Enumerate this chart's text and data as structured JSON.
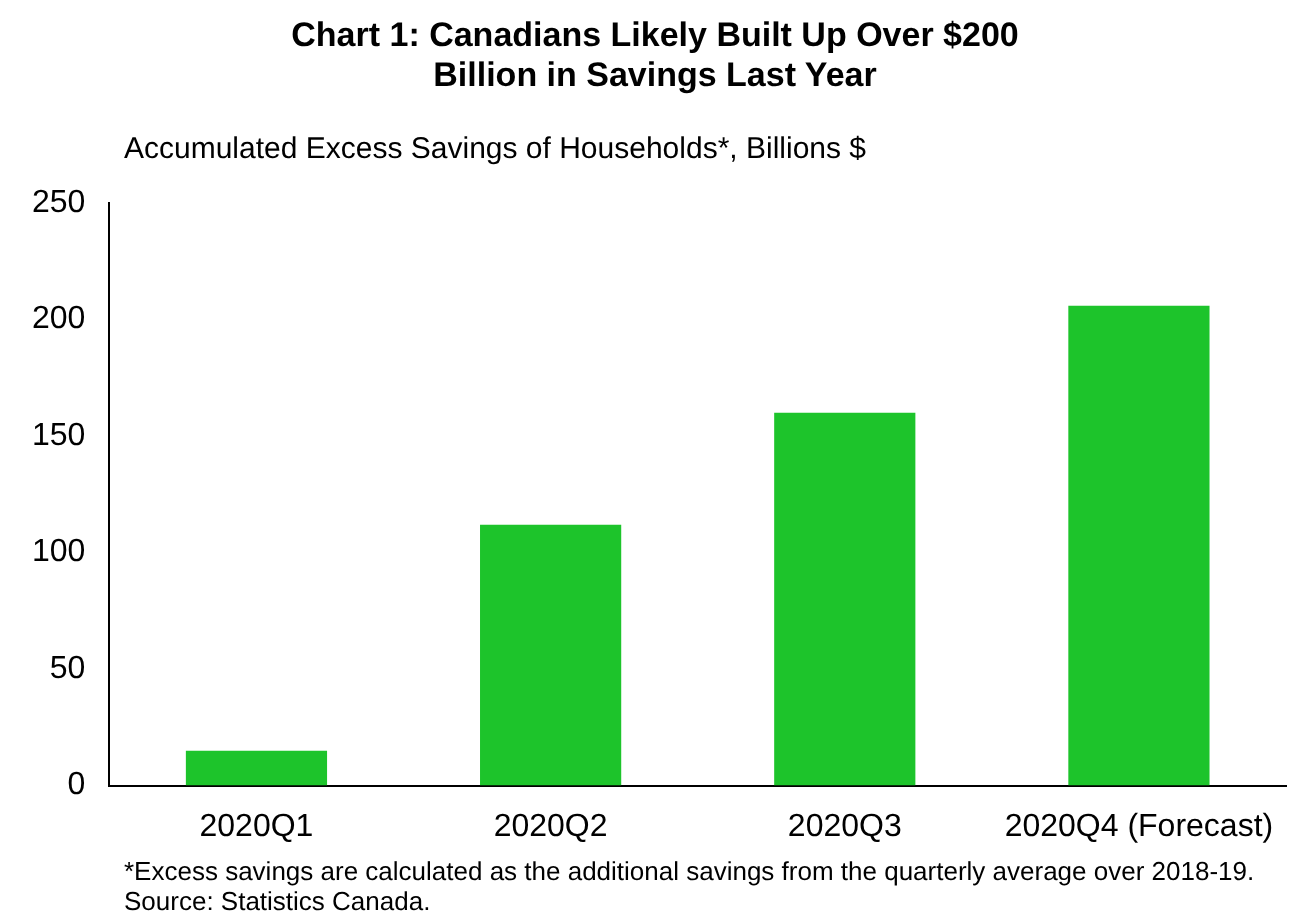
{
  "chart_data": {
    "type": "bar",
    "title": "Chart 1: Canadians Likely Built Up Over $200 Billion in Savings Last Year",
    "ylabel": "Accumulated Excess Savings of Households*, Billions $",
    "categories": [
      "2020Q1",
      "2020Q2",
      "2020Q3",
      "2020Q4 (Forecast)"
    ],
    "values": [
      15,
      112,
      160,
      206
    ],
    "color": "#1dc42b",
    "ylim": [
      0,
      250
    ],
    "yticks": [
      0,
      50,
      100,
      150,
      200,
      250
    ],
    "grid": false,
    "legend": false,
    "annotations": [
      "*Excess savings are calculated as the additional savings from the quarterly average over 2018-19. Source: Statistics Canada."
    ]
  }
}
